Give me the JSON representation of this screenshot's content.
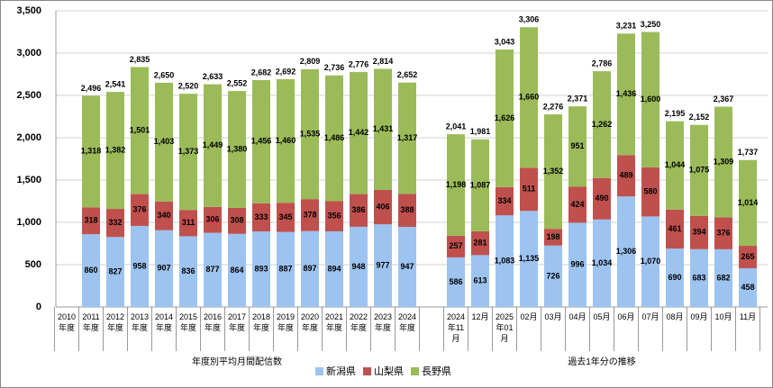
{
  "chart_data": {
    "type": "stacked_bar",
    "ylim": [
      0,
      3500
    ],
    "yticks": [
      0,
      500,
      {
        "value": 1000,
        "label": "1,000"
      },
      {
        "value": 1500,
        "label": "1,500"
      },
      {
        "value": 2000,
        "label": "2,000"
      },
      {
        "value": 2500,
        "label": "2,500"
      },
      {
        "value": 3000,
        "label": "3,000"
      },
      {
        "value": 3500,
        "label": "3,500"
      }
    ],
    "grid": true,
    "groups": [
      {
        "label": "年度別平均月間配信数",
        "categories": [
          "2010\n年度",
          "2011\n年度",
          "2012\n年度",
          "2013\n年度",
          "2014\n年度",
          "2015\n年度",
          "2016\n年度",
          "2017\n年度",
          "2018\n年度",
          "2019\n年度",
          "2020\n年度",
          "2021\n年度",
          "2022\n年度",
          "2023\n年度",
          "2024\n年度"
        ]
      },
      {
        "label": "過去1年分の推移",
        "categories": [
          "2024\n年11\n月",
          "12月",
          "2025\n年01\n月",
          "02月",
          "03月",
          "04月",
          "05月",
          "06月",
          "07月",
          "08月",
          "09月",
          "10月",
          "11月"
        ]
      }
    ],
    "series": [
      {
        "name": "新潟県",
        "color": "#9dc3f0",
        "values": [
          null,
          860,
          827,
          958,
          907,
          836,
          877,
          864,
          893,
          887,
          897,
          894,
          948,
          977,
          947,
          586,
          613,
          1083,
          1135,
          726,
          996,
          1034,
          1306,
          1070,
          690,
          683,
          682,
          458
        ],
        "value_labels": [
          null,
          "860",
          "827",
          "958",
          "907",
          "836",
          "877",
          "864",
          "893",
          "887",
          "897",
          "894",
          "948",
          "977",
          "947",
          "586",
          "613",
          "1,083",
          "1,135",
          "726",
          "996",
          "1,034",
          "1,306",
          "1,070",
          "690",
          "683",
          "682",
          "458"
        ]
      },
      {
        "name": "山梨県",
        "color": "#c0504d",
        "values": [
          null,
          318,
          332,
          376,
          340,
          311,
          306,
          308,
          333,
          345,
          378,
          356,
          386,
          406,
          388,
          257,
          281,
          334,
          511,
          198,
          424,
          490,
          489,
          580,
          461,
          394,
          376,
          265
        ]
      },
      {
        "name": "長野県",
        "color": "#9bbb59",
        "values": [
          null,
          1318,
          1382,
          1501,
          1403,
          1373,
          1449,
          1380,
          1456,
          1460,
          1535,
          1486,
          1442,
          1431,
          1317,
          1198,
          1087,
          1626,
          1660,
          1352,
          951,
          1262,
          1436,
          1600,
          1044,
          1075,
          1309,
          1014
        ],
        "value_labels": [
          null,
          "1,318",
          "1,382",
          "1,501",
          "1,403",
          "1,373",
          "1,449",
          "1,380",
          "1,456",
          "1,460",
          "1,535",
          "1,486",
          "1,442",
          "1,431",
          "1,317",
          "1,198",
          "1,087",
          "1,626",
          "1,660",
          "1,352",
          "951",
          "1,262",
          "1,436",
          "1,600",
          "1,044",
          "1,075",
          "1,309",
          "1,014"
        ]
      }
    ],
    "totals": {
      "values": [
        null,
        2496,
        2541,
        2835,
        2650,
        2520,
        2633,
        2552,
        2682,
        2692,
        2809,
        2736,
        2776,
        2814,
        2652,
        2041,
        1981,
        3043,
        3306,
        2276,
        2371,
        2786,
        3231,
        3250,
        2195,
        2152,
        2367,
        1737
      ],
      "value_labels": [
        null,
        "2,496",
        "2,541",
        "2,835",
        "2,650",
        "2,520",
        "2,633",
        "2,552",
        "2,682",
        "2,692",
        "2,809",
        "2,736",
        "2,776",
        "2,814",
        "2,652",
        "2,041",
        "1,981",
        "3,043",
        "3,306",
        "2,276",
        "2,371",
        "2,786",
        "3,231",
        "3,250",
        "2,195",
        "2,152",
        "2,367",
        "1,737"
      ]
    }
  }
}
